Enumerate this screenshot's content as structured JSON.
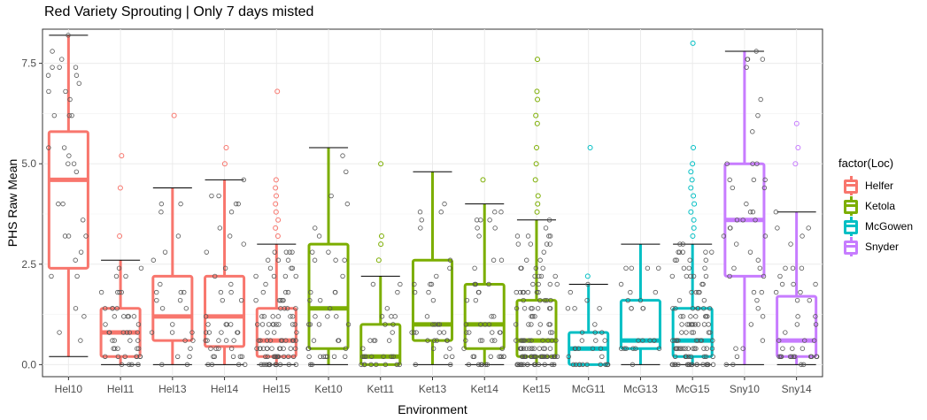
{
  "chart_data": {
    "type": "boxplot",
    "title": "Red Variety Sprouting | Only 7 days misted",
    "xlabel": "Environment",
    "ylabel": "PHS Raw Mean",
    "ylim": [
      -0.3,
      8.35
    ],
    "yticks": [
      0.0,
      2.5,
      5.0,
      7.5
    ],
    "ytick_labels": [
      "0.0",
      "2.5",
      "5.0",
      "7.5"
    ],
    "grid": true,
    "legend_title": "factor(Loc)",
    "legend_position": "right",
    "groups": [
      {
        "name": "Helfer",
        "color": "#F8766D"
      },
      {
        "name": "Ketola",
        "color": "#7CAE00"
      },
      {
        "name": "McGowen",
        "color": "#00BFC4"
      },
      {
        "name": "Snyder",
        "color": "#C77CFF"
      }
    ],
    "categories": [
      "Hel10",
      "Hel11",
      "Hel13",
      "Hel14",
      "Hel15",
      "Ket10",
      "Ket11",
      "Ket13",
      "Ket14",
      "Ket15",
      "McG11",
      "McG13",
      "McG15",
      "Sny10",
      "Sny14"
    ],
    "boxes": [
      {
        "label": "Hel10",
        "group": "Helfer",
        "min": 0.2,
        "q1": 2.4,
        "median": 4.6,
        "q3": 5.8,
        "max": 8.2,
        "outliers": []
      },
      {
        "label": "Hel11",
        "group": "Helfer",
        "min": 0.0,
        "q1": 0.2,
        "median": 0.8,
        "q3": 1.4,
        "max": 2.6,
        "outliers": [
          3.2,
          4.4,
          5.2
        ]
      },
      {
        "label": "Hel13",
        "group": "Helfer",
        "min": 0.0,
        "q1": 0.6,
        "median": 1.2,
        "q3": 2.2,
        "max": 4.4,
        "outliers": [
          6.2
        ]
      },
      {
        "label": "Hel14",
        "group": "Helfer",
        "min": 0.0,
        "q1": 0.45,
        "median": 1.2,
        "q3": 2.2,
        "max": 4.6,
        "outliers": [
          5.0,
          5.4
        ]
      },
      {
        "label": "Hel15",
        "group": "Helfer",
        "min": 0.0,
        "q1": 0.2,
        "median": 0.6,
        "q3": 1.4,
        "max": 3.0,
        "outliers": [
          3.2,
          3.4,
          3.6,
          3.8,
          4.0,
          4.2,
          4.4,
          4.6,
          6.8
        ]
      },
      {
        "label": "Ket10",
        "group": "Ketola",
        "min": 0.0,
        "q1": 0.4,
        "median": 1.4,
        "q3": 3.0,
        "max": 5.4,
        "outliers": []
      },
      {
        "label": "Ket11",
        "group": "Ketola",
        "min": 0.0,
        "q1": 0.0,
        "median": 0.2,
        "q3": 1.0,
        "max": 2.2,
        "outliers": [
          2.6,
          3.0,
          3.2,
          5.0
        ]
      },
      {
        "label": "Ket13",
        "group": "Ketola",
        "min": 0.0,
        "q1": 0.6,
        "median": 1.0,
        "q3": 2.6,
        "max": 4.8,
        "outliers": []
      },
      {
        "label": "Ket14",
        "group": "Ketola",
        "min": 0.0,
        "q1": 0.4,
        "median": 1.0,
        "q3": 2.0,
        "max": 4.0,
        "outliers": [
          4.6
        ]
      },
      {
        "label": "Ket15",
        "group": "Ketola",
        "min": 0.0,
        "q1": 0.2,
        "median": 0.6,
        "q3": 1.6,
        "max": 3.6,
        "outliers": [
          3.8,
          4.0,
          4.2,
          4.6,
          5.0,
          5.4,
          6.0,
          6.2,
          6.6,
          6.8,
          7.6
        ]
      },
      {
        "label": "McG11",
        "group": "McGowen",
        "min": 0.0,
        "q1": 0.0,
        "median": 0.4,
        "q3": 0.8,
        "max": 2.0,
        "outliers": [
          2.2,
          5.4
        ]
      },
      {
        "label": "McG13",
        "group": "McGowen",
        "min": 0.0,
        "q1": 0.4,
        "median": 0.6,
        "q3": 1.6,
        "max": 3.0,
        "outliers": []
      },
      {
        "label": "McG15",
        "group": "McGowen",
        "min": 0.0,
        "q1": 0.2,
        "median": 0.6,
        "q3": 1.4,
        "max": 3.0,
        "outliers": [
          3.2,
          3.4,
          3.6,
          3.8,
          4.0,
          4.2,
          4.4,
          4.6,
          4.8,
          5.0,
          5.4,
          8.0
        ]
      },
      {
        "label": "Sny10",
        "group": "Snyder",
        "min": 0.0,
        "q1": 2.2,
        "median": 3.6,
        "q3": 5.0,
        "max": 7.8,
        "outliers": []
      },
      {
        "label": "Sny14",
        "group": "Snyder",
        "min": 0.0,
        "q1": 0.2,
        "median": 0.6,
        "q3": 1.7,
        "max": 3.8,
        "outliers": [
          5.0,
          5.4,
          6.0
        ]
      }
    ],
    "jitter_points_per_box": [
      35,
      45,
      25,
      45,
      90,
      40,
      30,
      35,
      50,
      120,
      30,
      25,
      110,
      45,
      40
    ]
  }
}
